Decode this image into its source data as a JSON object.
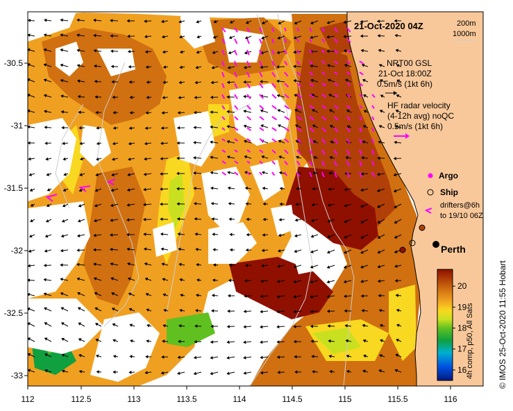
{
  "title": "21-Oct-2020 04Z",
  "isobath_labels": [
    "200m",
    "1000m"
  ],
  "legend": {
    "model": [
      "NRT00 GSL",
      "21-Oct 18:00Z",
      "0.5m/s (1kt 6h)"
    ],
    "radar": [
      "HF radar velocity",
      "(4-12h avg) noQC",
      "0.5m/s (1kt 6h)"
    ],
    "argo": "Argo",
    "ship": "Ship",
    "drifters": [
      "drifters@6h",
      "to 19/10 06Z"
    ]
  },
  "city": "Perth",
  "credit": "©  IMOS 25-Oct-2020 11:55 Hobart",
  "colorbar": {
    "label": "4h comp, p50, All Sats",
    "ticks": [
      "20",
      "19",
      "18",
      "17",
      "16"
    ],
    "range": [
      15.5,
      20.8
    ]
  },
  "axes": {
    "lon_ticks": [
      "112",
      "112.5",
      "113",
      "113.5",
      "114",
      "114.5",
      "115",
      "115.5",
      "116"
    ],
    "lat_ticks": [
      "-30.5",
      "-31",
      "-31.5",
      "-32",
      "-32.5",
      "-33"
    ]
  },
  "colors": {
    "land": "#f9c89a",
    "model_vector": "#000000",
    "radar_vector": "#ff00ff",
    "isobath": "#cccccc"
  }
}
